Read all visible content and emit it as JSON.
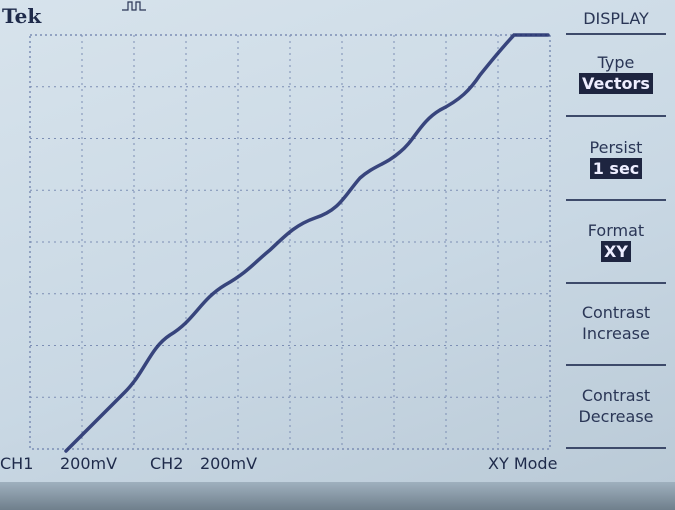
{
  "brand": "Tek",
  "menu": {
    "title": "DISPLAY",
    "items": [
      {
        "label": "Type",
        "value": "Vectors"
      },
      {
        "label": "Persist",
        "value": "1 sec"
      },
      {
        "label": "Format",
        "value": "XY"
      },
      {
        "label": "Contrast Increase"
      },
      {
        "label": "Contrast Decrease"
      }
    ]
  },
  "status": {
    "ch1": "CH1",
    "ch1_scale": "200mV",
    "ch2": "CH2",
    "ch2_scale": "200mV",
    "mode": "XY Mode"
  }
}
